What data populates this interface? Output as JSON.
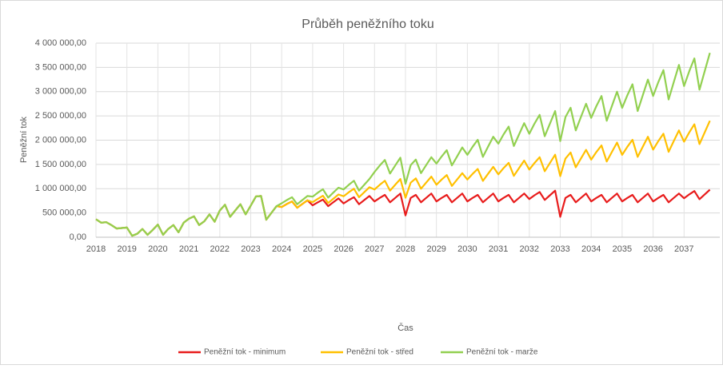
{
  "chart_data": {
    "type": "line",
    "title": "Průběh peněžního toku",
    "x_label": "Čas",
    "y_label": "Peněžní tok",
    "categories": [
      "2018",
      null,
      null,
      null,
      null,
      null,
      "2019",
      null,
      null,
      null,
      null,
      null,
      "2020",
      null,
      null,
      null,
      null,
      null,
      "2021",
      null,
      null,
      null,
      null,
      null,
      "2022",
      null,
      null,
      null,
      null,
      null,
      "2023",
      null,
      null,
      null,
      null,
      null,
      "2024",
      null,
      null,
      null,
      null,
      null,
      "2025",
      null,
      null,
      null,
      null,
      null,
      "2026",
      null,
      null,
      null,
      null,
      null,
      "2027",
      null,
      null,
      null,
      null,
      null,
      "2028",
      null,
      null,
      null,
      null,
      null,
      "2029",
      null,
      null,
      null,
      null,
      null,
      "2030",
      null,
      null,
      null,
      null,
      null,
      "2031",
      null,
      null,
      null,
      null,
      null,
      "2032",
      null,
      null,
      null,
      null,
      null,
      "2033",
      null,
      null,
      null,
      null,
      null,
      "2034",
      null,
      null,
      null,
      null,
      null,
      "2035",
      null,
      null,
      null,
      null,
      null,
      "2036",
      null,
      null,
      null,
      null,
      null,
      "2037",
      null,
      null,
      null,
      null,
      null
    ],
    "series": [
      {
        "name": "Peněžní tok - minimum",
        "color": "#e81c1c",
        "values": [
          370000,
          300000,
          310000,
          250000,
          180000,
          190000,
          200000,
          30000,
          70000,
          170000,
          50000,
          150000,
          260000,
          50000,
          170000,
          250000,
          100000,
          300000,
          380000,
          430000,
          250000,
          330000,
          470000,
          320000,
          550000,
          670000,
          420000,
          550000,
          680000,
          470000,
          650000,
          840000,
          850000,
          360000,
          500000,
          640000,
          623000,
          684000,
          737000,
          608000,
          684000,
          760000,
          656000,
          720000,
          776000,
          640000,
          720000,
          800000,
          697000,
          765000,
          825000,
          680000,
          765000,
          850000,
          738000,
          810000,
          873000,
          720000,
          810000,
          900000,
          450000,
          810000,
          873000,
          720000,
          810000,
          900000,
          738000,
          810000,
          873000,
          720000,
          810000,
          900000,
          738000,
          810000,
          873000,
          720000,
          810000,
          900000,
          738000,
          810000,
          873000,
          720000,
          810000,
          900000,
          787000,
          864000,
          931000,
          768000,
          864000,
          960000,
          420000,
          810000,
          873000,
          720000,
          810000,
          900000,
          738000,
          810000,
          873000,
          720000,
          810000,
          900000,
          738000,
          810000,
          873000,
          720000,
          810000,
          900000,
          738000,
          810000,
          873000,
          720000,
          810000,
          900000,
          804000,
          882000,
          951000,
          784000,
          882000,
          980000
        ]
      },
      {
        "name": "Peněžní tok - střed",
        "color": "#ffc000",
        "values": [
          370000,
          300000,
          310000,
          250000,
          180000,
          190000,
          200000,
          30000,
          70000,
          170000,
          50000,
          150000,
          260000,
          50000,
          170000,
          250000,
          100000,
          300000,
          380000,
          430000,
          250000,
          330000,
          470000,
          320000,
          550000,
          670000,
          420000,
          550000,
          680000,
          470000,
          650000,
          840000,
          850000,
          360000,
          500000,
          640000,
          623000,
          684000,
          737000,
          608000,
          684000,
          760000,
          722000,
          792000,
          854000,
          704000,
          792000,
          880000,
          845000,
          927000,
          999000,
          824000,
          927000,
          1030000,
          984000,
          1080000,
          1164000,
          960000,
          1080000,
          1200000,
          813000,
          1125000,
          1213000,
          1000000,
          1125000,
          1250000,
          1082000,
          1188000,
          1280000,
          1056000,
          1188000,
          1320000,
          1189000,
          1305000,
          1407000,
          1160000,
          1305000,
          1450000,
          1296000,
          1422000,
          1533000,
          1264000,
          1422000,
          1580000,
          1394000,
          1530000,
          1649000,
          1360000,
          1530000,
          1700000,
          1260000,
          1620000,
          1746000,
          1440000,
          1620000,
          1800000,
          1599000,
          1755000,
          1892000,
          1560000,
          1755000,
          1950000,
          1697000,
          1863000,
          2008000,
          1656000,
          1863000,
          2070000,
          1804000,
          1980000,
          2134000,
          1760000,
          1980000,
          2200000,
          1968000,
          2160000,
          2328000,
          1920000,
          2160000,
          2400000
        ]
      },
      {
        "name": "Peněžní tok - marže",
        "color": "#92d050",
        "values": [
          370000,
          300000,
          310000,
          250000,
          180000,
          190000,
          200000,
          30000,
          70000,
          170000,
          50000,
          150000,
          260000,
          50000,
          170000,
          250000,
          100000,
          300000,
          380000,
          430000,
          250000,
          330000,
          470000,
          320000,
          550000,
          670000,
          420000,
          550000,
          680000,
          470000,
          650000,
          840000,
          850000,
          360000,
          500000,
          640000,
          700000,
          765000,
          825000,
          680000,
          765000,
          850000,
          836000,
          918000,
          989000,
          816000,
          918000,
          1020000,
          984000,
          1080000,
          1164000,
          960000,
          1080000,
          1200000,
          1345000,
          1476000,
          1591000,
          1312000,
          1476000,
          1640000,
          1100000,
          1485000,
          1600000,
          1320000,
          1485000,
          1650000,
          1517000,
          1665000,
          1795000,
          1480000,
          1665000,
          1850000,
          1697000,
          1863000,
          2008000,
          1656000,
          1863000,
          2070000,
          1927000,
          2115000,
          2280000,
          1880000,
          2115000,
          2350000,
          2132000,
          2340000,
          2522000,
          2080000,
          2340000,
          2600000,
          1980000,
          2475000,
          2668000,
          2200000,
          2475000,
          2750000,
          2460000,
          2700000,
          2910000,
          2400000,
          2700000,
          3000000,
          2665000,
          2925000,
          3153000,
          2600000,
          2925000,
          3250000,
          2911000,
          3195000,
          3444000,
          2840000,
          3195000,
          3550000,
          3116000,
          3420000,
          3686000,
          3040000,
          3420000,
          3800000
        ]
      }
    ],
    "ylim": [
      0,
      4000000
    ],
    "yticks": [
      {
        "value": 0,
        "label": "0,00"
      },
      {
        "value": 500000,
        "label": "500 000,00"
      },
      {
        "value": 1000000,
        "label": "1 000 000,00"
      },
      {
        "value": 1500000,
        "label": "1 500 000,00"
      },
      {
        "value": 2000000,
        "label": "2 000 000,00"
      },
      {
        "value": 2500000,
        "label": "2 500 000,00"
      },
      {
        "value": 3000000,
        "label": "3 000 000,00"
      },
      {
        "value": 3500000,
        "label": "3 500 000,00"
      },
      {
        "value": 4000000,
        "label": "4 000 000,00"
      }
    ],
    "grid": true,
    "legend": "bottom"
  }
}
